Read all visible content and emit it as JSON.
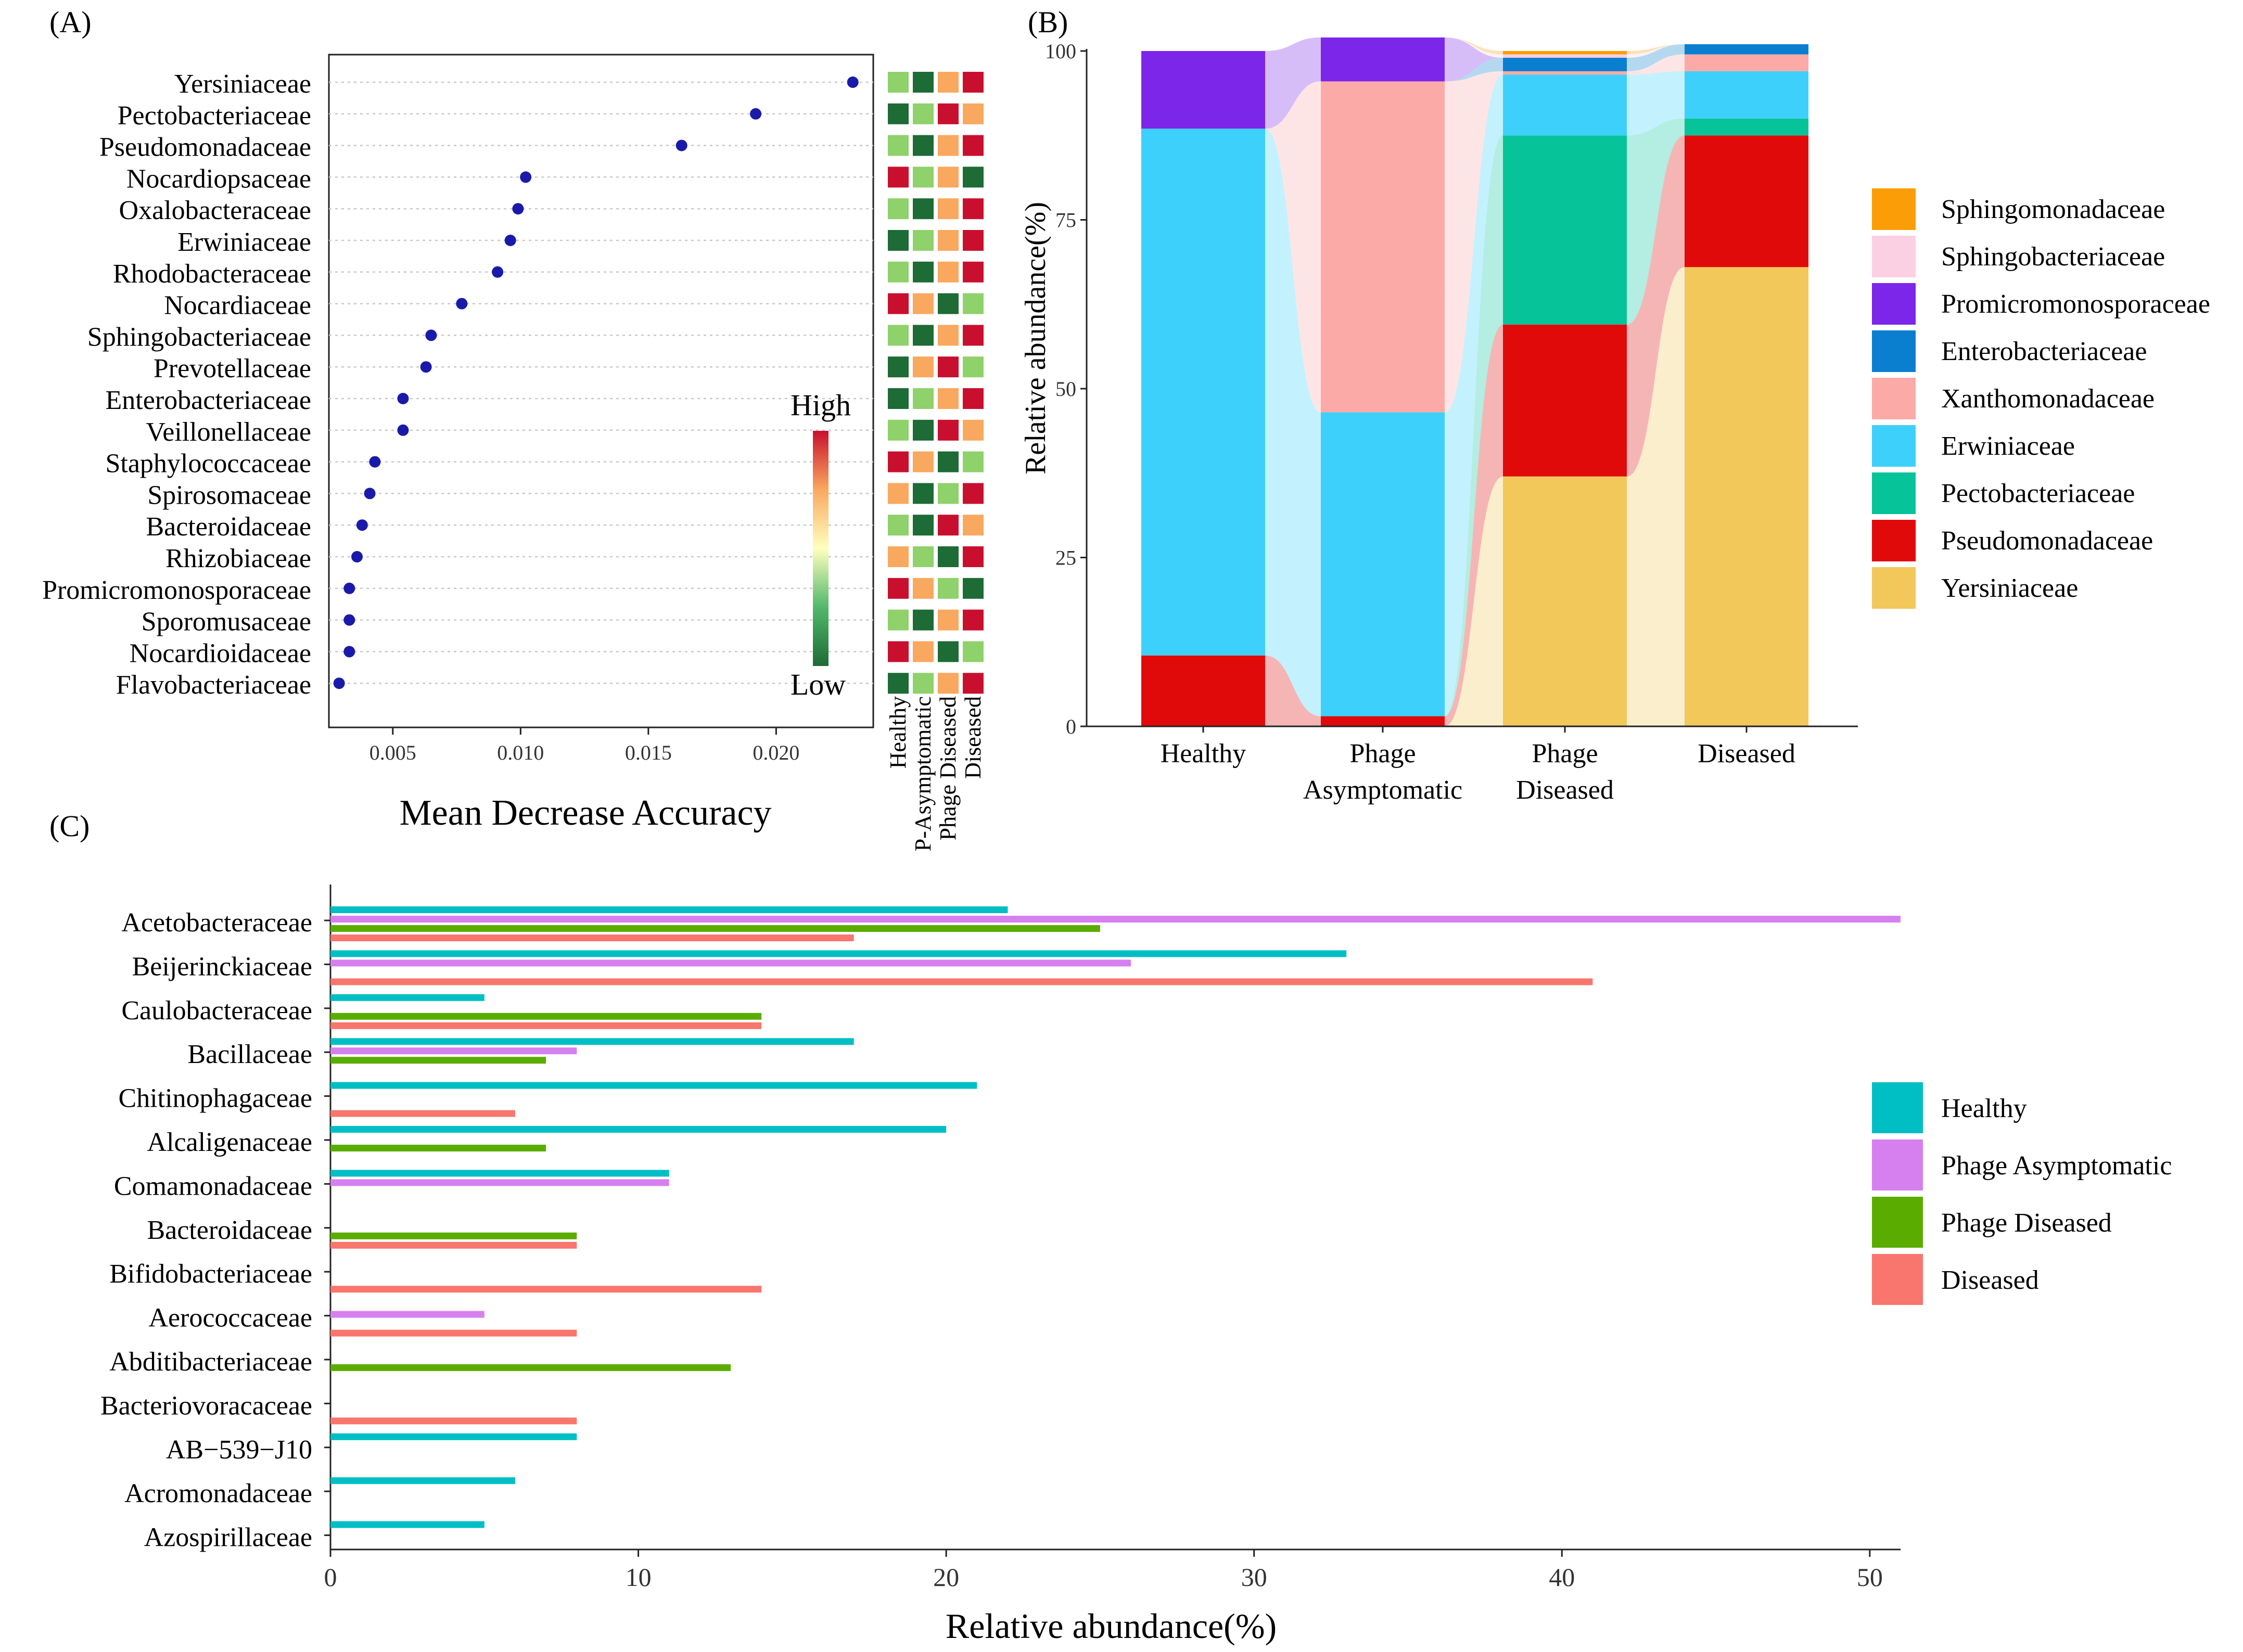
{
  "panels": {
    "a": {
      "label": "(A)"
    },
    "b": {
      "label": "(B)"
    },
    "c": {
      "label": "(C)"
    }
  },
  "chart_data": [
    {
      "id": "A",
      "type": "scatter",
      "title": "",
      "xlabel": "Mean Decrease Accuracy",
      "ylabel": "",
      "xlim": [
        0.0025,
        0.0238
      ],
      "xticks": [
        0.005,
        0.01,
        0.015,
        0.02
      ],
      "xtick_labels": [
        "0.005",
        "0.010",
        "0.015",
        "0.020"
      ],
      "grid": "dotted horizontal",
      "categories": [
        "Yersiniaceae",
        "Pectobacteriaceae",
        "Pseudomonadaceae",
        "Nocardiopsaceae",
        "Oxalobacteraceae",
        "Erwiniaceae",
        "Rhodobacteraceae",
        "Nocardiaceae",
        "Sphingobacteriaceae",
        "Prevotellaceae",
        "Enterobacteriaceae",
        "Veillonellaceae",
        "Staphylococcaceae",
        "Spirosomaceae",
        "Bacteroidaceae",
        "Rhizobiaceae",
        "Promicromonosporaceae",
        "Sporomusaceae",
        "Nocardioidaceae",
        "Flavobacteriaceae"
      ],
      "values": [
        0.023,
        0.0192,
        0.0163,
        0.0102,
        0.0099,
        0.0096,
        0.0091,
        0.0077,
        0.0065,
        0.0063,
        0.0054,
        0.0054,
        0.0043,
        0.0041,
        0.0038,
        0.0036,
        0.0033,
        0.0033,
        0.0033,
        0.0029
      ],
      "point_color": "#1a1aaa",
      "heatmap": {
        "columns": [
          "Healthy",
          "P-Asymptomatic",
          "Phage Diseased",
          "Diseased"
        ],
        "scale_labels": {
          "high": "High",
          "low": "Low"
        },
        "levels": [
          [
            2,
            1,
            3,
            4
          ],
          [
            1,
            2,
            4,
            3
          ],
          [
            2,
            1,
            3,
            4
          ],
          [
            4,
            2,
            3,
            1
          ],
          [
            2,
            1,
            3,
            4
          ],
          [
            1,
            2,
            3,
            4
          ],
          [
            2,
            1,
            3,
            4
          ],
          [
            4,
            3,
            1,
            2
          ],
          [
            2,
            1,
            3,
            4
          ],
          [
            1,
            3,
            4,
            2
          ],
          [
            1,
            2,
            3,
            4
          ],
          [
            2,
            1,
            4,
            3
          ],
          [
            4,
            3,
            1,
            2
          ],
          [
            3,
            1,
            2,
            4
          ],
          [
            2,
            1,
            4,
            3
          ],
          [
            3,
            2,
            1,
            4
          ],
          [
            4,
            3,
            2,
            1
          ],
          [
            2,
            1,
            3,
            4
          ],
          [
            4,
            3,
            1,
            2
          ],
          [
            1,
            2,
            3,
            4
          ]
        ],
        "level_colors": {
          "1": "#1d6b35",
          "2": "#8fd16a",
          "3": "#f9a85f",
          "4": "#c8102e"
        }
      }
    },
    {
      "id": "B",
      "type": "bar",
      "subtype": "stacked alluvial",
      "title": "",
      "xlabel": "",
      "ylabel": "Relative abundance(%)",
      "ylim": [
        0,
        100
      ],
      "yticks": [
        0,
        25,
        50,
        75,
        100
      ],
      "categories": [
        "Healthy",
        "Phage Asymptomatic",
        "Phage Diseased",
        "Diseased"
      ],
      "category_lines": [
        [
          "Healthy"
        ],
        [
          "Phage",
          "Asymptomatic"
        ],
        [
          "Phage",
          "Diseased"
        ],
        [
          "Diseased"
        ]
      ],
      "legend_position": "right",
      "series": [
        {
          "name": "Yersiniaceae",
          "color": "#f2c85b",
          "values": [
            0,
            0,
            37,
            68
          ]
        },
        {
          "name": "Pseudomonadaceae",
          "color": "#e10a0a",
          "values": [
            10.5,
            1.5,
            22.5,
            19.5
          ]
        },
        {
          "name": "Pectobacteriaceae",
          "color": "#06c39a",
          "values": [
            0,
            0,
            28,
            2.5
          ]
        },
        {
          "name": "Erwiniaceae",
          "color": "#3dd0fb",
          "values": [
            78,
            45,
            9,
            7
          ]
        },
        {
          "name": "Xanthomonadaceae",
          "color": "#fcaaa8",
          "values": [
            0,
            49,
            0.5,
            2.5
          ]
        },
        {
          "name": "Enterobacteriaceae",
          "color": "#0a7fd0",
          "values": [
            0,
            0,
            2,
            1.5
          ]
        },
        {
          "name": "Promicromonosporaceae",
          "color": "#7b26e8",
          "values": [
            11.5,
            6.5,
            0,
            0
          ]
        },
        {
          "name": "Sphingobacteriaceae",
          "color": "#fcd0e3",
          "values": [
            0,
            0,
            0.5,
            0
          ]
        },
        {
          "name": "Sphingomonadaceae",
          "color": "#fb9d06",
          "values": [
            0,
            0,
            0.5,
            0
          ]
        }
      ],
      "legend_order": [
        "Sphingomonadaceae",
        "Sphingobacteriaceae",
        "Promicromonosporaceae",
        "Enterobacteriaceae",
        "Xanthomonadaceae",
        "Erwiniaceae",
        "Pectobacteriaceae",
        "Pseudomonadaceae",
        "Yersiniaceae"
      ]
    },
    {
      "id": "C",
      "type": "bar",
      "orientation": "horizontal",
      "title": "",
      "xlabel": "Relative abundance(%)",
      "ylabel": "",
      "xlim": [
        0,
        51
      ],
      "xticks": [
        0,
        10,
        20,
        30,
        40,
        50
      ],
      "legend_position": "right",
      "categories": [
        "Acetobacteraceae",
        "Beijerinckiaceae",
        "Caulobacteraceae",
        "Bacillaceae",
        "Chitinophagaceae",
        "Alcaligenaceae",
        "Comamonadaceae",
        "Bacteroidaceae",
        "Bifidobacteriaceae",
        "Aerococcaceae",
        "Abditibacteriaceae",
        "Bacteriovoracaceae",
        "AB−539−J10",
        "Acromonadaceae",
        "Azospirillaceae"
      ],
      "series": [
        {
          "name": "Healthy",
          "color": "#00bfc4",
          "values": [
            22,
            33,
            5,
            17,
            21,
            20,
            11,
            0,
            0,
            0,
            0,
            0,
            8,
            6,
            5
          ]
        },
        {
          "name": "Phage Asymptomatic",
          "color": "#d680f0",
          "values": [
            51,
            26,
            0,
            8,
            0,
            0,
            11,
            0,
            0,
            5,
            0,
            0,
            0,
            0,
            0
          ]
        },
        {
          "name": "Phage Diseased",
          "color": "#5aad00",
          "values": [
            25,
            0,
            14,
            7,
            0,
            7,
            0,
            8,
            0,
            0,
            13,
            0,
            0,
            0,
            0
          ]
        },
        {
          "name": "Diseased",
          "color": "#f8766d",
          "values": [
            17,
            41,
            14,
            0,
            6,
            0,
            0,
            8,
            14,
            8,
            0,
            8,
            0,
            0,
            0
          ]
        }
      ]
    }
  ]
}
